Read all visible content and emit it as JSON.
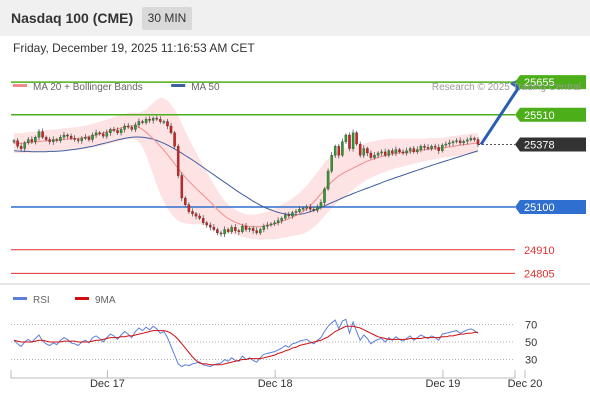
{
  "header": {
    "title": "Nasdaq 100 (CME)",
    "interval": "30 MIN",
    "datetime": "Friday, December 19, 2025 11:16:53 AM CET"
  },
  "colors": {
    "ma20": "#f28c8c",
    "bollinger_fill": "#fde3e3",
    "ma50": "#3f5f9f",
    "up_candle": "#2e9b2e",
    "down_candle": "#d42020",
    "resistance": "#4caf19",
    "pivot": "#2f6fd0",
    "support": "#e03030",
    "last_price_bg": "#333333",
    "rsi": "#5b7fd9",
    "rsi_ma": "#d01010",
    "arrow": "#2a5fb0"
  },
  "chart_data": [
    {
      "type": "candlestick",
      "legend": [
        {
          "name": "MA 20 + Bollinger Bands",
          "color_key": "ma20"
        },
        {
          "name": "MA 50",
          "color_key": "ma50"
        }
      ],
      "legend_placement": "top-left",
      "watermark": "Research © 2025 Trading Central",
      "ylim": [
        24740,
        25700
      ],
      "x_ticks": [
        {
          "label": "Dec 17",
          "index": 13
        },
        {
          "label": "Dec 18",
          "index": 60
        },
        {
          "label": "Dec 19",
          "index": 107
        },
        {
          "label": "Dec 20",
          "index": 130
        }
      ],
      "close": [
        25395,
        25370,
        25360,
        25385,
        25400,
        25390,
        25410,
        25435,
        25410,
        25400,
        25390,
        25400,
        25395,
        25410,
        25420,
        25415,
        25405,
        25400,
        25395,
        25405,
        25410,
        25400,
        25420,
        25430,
        25425,
        25415,
        25430,
        25445,
        25440,
        25430,
        25445,
        25460,
        25455,
        25445,
        25465,
        25480,
        25475,
        25490,
        25485,
        25495,
        25490,
        25480,
        25480,
        25460,
        25430,
        25370,
        25240,
        25140,
        25110,
        25080,
        25070,
        25060,
        25050,
        25030,
        25020,
        25010,
        25000,
        24985,
        24980,
        25000,
        24990,
        25010,
        24995,
        24990,
        25015,
        25000,
        25005,
        24995,
        24985,
        25000,
        25015,
        25020,
        25025,
        25030,
        25040,
        25050,
        25065,
        25060,
        25075,
        25080,
        25090,
        25095,
        25100,
        25090,
        25085,
        25100,
        25120,
        25180,
        25260,
        25330,
        25370,
        25330,
        25390,
        25420,
        25360,
        25430,
        25380,
        25330,
        25360,
        25340,
        25320,
        25330,
        25340,
        25345,
        25330,
        25350,
        25340,
        25355,
        25345,
        25340,
        25350,
        25360,
        25345,
        25355,
        25370,
        25365,
        25360,
        25370,
        25365,
        25350,
        25375,
        25380,
        25385,
        25390,
        25395,
        25385,
        25392,
        25398,
        25405,
        25400,
        25378
      ],
      "ma20": [
        25385,
        25384,
        25383,
        25385,
        25387,
        25388,
        25389,
        25391,
        25393,
        25395,
        25396,
        25397,
        25398,
        25400,
        25401,
        25402,
        25403,
        25404,
        25405,
        25407,
        25410,
        25413,
        25417,
        25421,
        25425,
        25429,
        25434,
        25438,
        25443,
        25447,
        25452,
        25456,
        25459,
        25461,
        25460,
        25455,
        25445,
        25432,
        25418,
        25403,
        25387,
        25370,
        25352,
        25333,
        25313,
        25292,
        25271,
        25251,
        25232,
        25214,
        25198,
        25183,
        25168,
        25153,
        25138,
        25122,
        25105,
        25089,
        25074,
        25060,
        25049,
        25040,
        25032,
        25026,
        25020,
        25016,
        25013,
        25012,
        25012,
        25013,
        25015,
        25018,
        25021,
        25025,
        25030,
        25036,
        25042,
        25048,
        25055,
        25062,
        25070,
        25080,
        25092,
        25106,
        25122,
        25140,
        25159,
        25178,
        25196,
        25212,
        25226,
        25238,
        25248,
        25257,
        25265,
        25273,
        25281,
        25289,
        25297,
        25304,
        25310,
        25315,
        25320,
        25325,
        25329,
        25333,
        25336,
        25338,
        25340,
        25342,
        25344,
        25346,
        25348,
        25350,
        25352,
        25354,
        25356,
        25358,
        25359,
        25361,
        25363,
        25365,
        25367,
        25369,
        25372,
        25375,
        25377,
        25379,
        25381,
        25383,
        25385
      ],
      "ma50": [
        25350,
        25349,
        25348,
        25347,
        25347,
        25346,
        25346,
        25346,
        25346,
        25346,
        25347,
        25347,
        25348,
        25349,
        25350,
        25352,
        25354,
        25356,
        25358,
        25361,
        25364,
        25367,
        25370,
        25374,
        25378,
        25382,
        25386,
        25390,
        25394,
        25398,
        25402,
        25405,
        25408,
        25410,
        25411,
        25411,
        25410,
        25408,
        25405,
        25401,
        25396,
        25390,
        25383,
        25375,
        25367,
        25358,
        25349,
        25339,
        25329,
        25319,
        25309,
        25298,
        25287,
        25276,
        25265,
        25254,
        25243,
        25232,
        25221,
        25210,
        25199,
        25188,
        25177,
        25166,
        25156,
        25146,
        25136,
        25126,
        25117,
        25108,
        25100,
        25093,
        25087,
        25081,
        25076,
        25072,
        25069,
        25067,
        25066,
        25066,
        25067,
        25070,
        25074,
        25079,
        25085,
        25091,
        25098,
        25105,
        25112,
        25119,
        25126,
        25133,
        25140,
        25147,
        25153,
        25160,
        25166,
        25172,
        25178,
        25184,
        25190,
        25196,
        25202,
        25208,
        25214,
        25220,
        25225,
        25231,
        25236,
        25242,
        25247,
        25253,
        25258,
        25263,
        25269,
        25274,
        25279,
        25285,
        25290,
        25295,
        25300,
        25305,
        25310,
        25315,
        25320,
        25325,
        25330,
        25335,
        25340,
        25345,
        25350
      ],
      "boll_width": [
        45,
        45,
        45,
        45,
        46,
        46,
        46,
        46,
        47,
        47,
        47,
        48,
        48,
        48,
        49,
        49,
        50,
        50,
        51,
        51,
        52,
        52,
        53,
        53,
        54,
        55,
        55,
        56,
        57,
        57,
        58,
        58,
        59,
        59,
        60,
        65,
        78,
        100,
        130,
        160,
        190,
        215,
        230,
        240,
        242,
        240,
        232,
        220,
        205,
        190,
        175,
        160,
        145,
        130,
        118,
        106,
        95,
        85,
        76,
        68,
        62,
        58,
        55,
        53,
        52,
        52,
        53,
        54,
        56,
        58,
        60,
        62,
        65,
        68,
        71,
        74,
        77,
        80,
        84,
        88,
        93,
        98,
        103,
        108,
        112,
        115,
        117,
        118,
        118,
        117,
        115,
        112,
        108,
        104,
        100,
        96,
        92,
        88,
        85,
        82,
        80,
        78,
        76,
        74,
        72,
        70,
        68,
        66,
        64,
        62,
        60,
        58,
        56,
        54,
        52,
        50,
        49,
        48,
        47,
        46,
        45,
        45,
        45,
        45,
        45,
        45,
        45,
        45,
        45,
        45,
        45
      ],
      "levels": [
        {
          "label": "25655",
          "value": 25655,
          "kind": "resistance"
        },
        {
          "label": "25510",
          "value": 25510,
          "kind": "resistance"
        },
        {
          "label": "25378",
          "value": 25378,
          "kind": "last"
        },
        {
          "label": "25100",
          "value": 25100,
          "kind": "pivot"
        },
        {
          "label": "24910",
          "value": 24910,
          "kind": "support"
        },
        {
          "label": "24805",
          "value": 24805,
          "kind": "support"
        }
      ],
      "arrow": {
        "from": {
          "index": 130,
          "value": 25378
        },
        "to": {
          "index": 148,
          "value": 25655
        }
      }
    },
    {
      "type": "line",
      "legend": [
        {
          "name": "RSI",
          "color_key": "rsi"
        },
        {
          "name": "9MA",
          "color_key": "rsi_ma"
        }
      ],
      "ylim": [
        18,
        82
      ],
      "y_ticks": [
        {
          "label": "70",
          "value": 70
        },
        {
          "label": "50",
          "value": 50
        },
        {
          "label": "30",
          "value": 30
        }
      ],
      "rsi": [
        52,
        48,
        45,
        50,
        53,
        50,
        54,
        58,
        51,
        48,
        46,
        49,
        47,
        52,
        55,
        53,
        49,
        48,
        46,
        50,
        52,
        49,
        55,
        57,
        54,
        50,
        55,
        59,
        57,
        53,
        58,
        62,
        59,
        55,
        62,
        66,
        63,
        67,
        64,
        68,
        65,
        60,
        62,
        55,
        45,
        35,
        25,
        22,
        24,
        23,
        25,
        26,
        27,
        24,
        23,
        22,
        24,
        25,
        26,
        30,
        28,
        32,
        29,
        28,
        34,
        30,
        32,
        29,
        27,
        32,
        36,
        37,
        38,
        39,
        41,
        43,
        46,
        44,
        48,
        49,
        51,
        52,
        53,
        50,
        48,
        52,
        55,
        62,
        68,
        72,
        75,
        65,
        74,
        76,
        60,
        73,
        62,
        52,
        58,
        54,
        48,
        51,
        53,
        54,
        50,
        55,
        52,
        56,
        53,
        51,
        54,
        57,
        52,
        55,
        58,
        56,
        54,
        57,
        55,
        52,
        59,
        60,
        61,
        62,
        63,
        60,
        62,
        64,
        65,
        63,
        60
      ],
      "ma": [
        52,
        51,
        50,
        50,
        50,
        50,
        51,
        52,
        52,
        51,
        50,
        50,
        50,
        50,
        51,
        51,
        51,
        51,
        50,
        50,
        50,
        50,
        51,
        52,
        52,
        53,
        54,
        55,
        55,
        55,
        56,
        56,
        57,
        57,
        58,
        59,
        60,
        61,
        62,
        63,
        63,
        63,
        63,
        62,
        60,
        57,
        53,
        48,
        43,
        38,
        33,
        29,
        26,
        25,
        25,
        24,
        24,
        24,
        24,
        25,
        26,
        27,
        28,
        29,
        30,
        30,
        31,
        31,
        31,
        31,
        32,
        33,
        34,
        35,
        37,
        38,
        40,
        41,
        43,
        44,
        46,
        47,
        48,
        49,
        50,
        51,
        52,
        54,
        56,
        59,
        62,
        64,
        66,
        68,
        68,
        68,
        67,
        66,
        64,
        62,
        60,
        58,
        56,
        55,
        54,
        53,
        53,
        53,
        53,
        53,
        53,
        54,
        54,
        54,
        54,
        55,
        55,
        55,
        55,
        55,
        56,
        56,
        57,
        57,
        58,
        59,
        59,
        60,
        60,
        61,
        61
      ]
    }
  ]
}
